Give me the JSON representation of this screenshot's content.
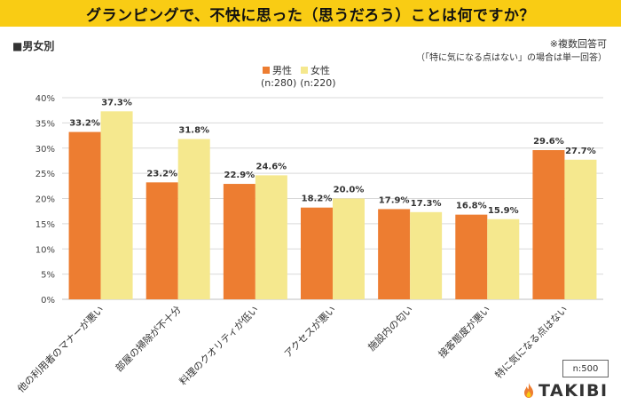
{
  "title": "グランピングで、不快に思った（思うだろう）ことは何ですか？",
  "section_label": "■男女別",
  "notes": {
    "multiple": "※複数回答可",
    "exception": "（「特に気になる点はない」の場合は単一回答）"
  },
  "sample_box": "n:500",
  "logo_text": "TAKIBI",
  "colors": {
    "title_bg": "#F9CC14",
    "male": "#ED7D31",
    "female": "#F5E88E",
    "grid": "#D9D9D9"
  },
  "chart_data": {
    "type": "bar",
    "categories": [
      "他の利用者のマナーが悪い",
      "部屋の掃除が不十分",
      "料理のクオリティが低い",
      "アクセスが悪い",
      "施設内の匂い",
      "接客態度が悪い",
      "特に気になる点はない"
    ],
    "series": [
      {
        "name": "男性",
        "n": "(n:280)",
        "color": "#ED7D31",
        "values": [
          33.2,
          23.2,
          22.9,
          18.2,
          17.9,
          16.8,
          29.6
        ]
      },
      {
        "name": "女性",
        "n": "(n:220)",
        "color": "#F5E88E",
        "values": [
          37.3,
          31.8,
          24.6,
          20.0,
          17.3,
          15.9,
          27.7
        ]
      }
    ],
    "ylim": [
      0,
      40
    ],
    "yticks": [
      "0%",
      "5%",
      "10%",
      "15%",
      "20%",
      "25%",
      "30%",
      "35%",
      "40%"
    ],
    "grid": true,
    "legend_position": "top-center"
  }
}
